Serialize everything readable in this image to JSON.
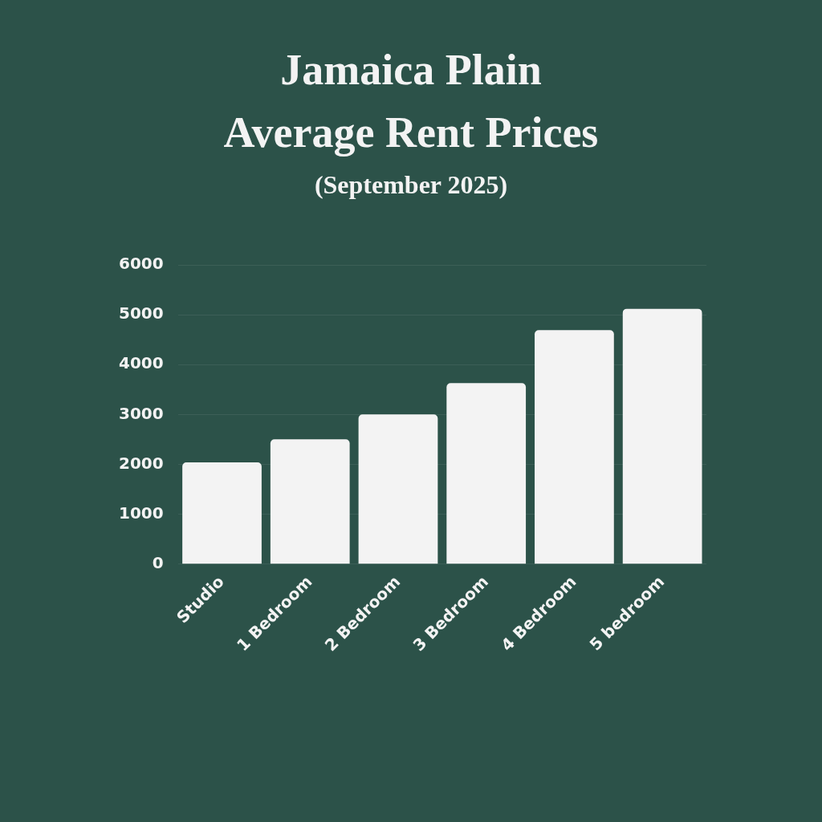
{
  "chart_data": {
    "type": "bar",
    "title": "Jamaica Plain\nAverage Rent Prices",
    "subtitle": "(September 2025)",
    "categories": [
      "Studio",
      "1 Bedroom",
      "2 Bedroom",
      "3 Bedroom",
      "4 Bedroom",
      "5 bedroom"
    ],
    "values": [
      2040,
      2500,
      3000,
      3630,
      4690,
      5120
    ],
    "color": "#f3f3f3",
    "ylim": [
      0,
      6000
    ],
    "yticks": [
      0,
      1000,
      2000,
      3000,
      4000,
      5000,
      6000
    ],
    "grid": "y"
  }
}
